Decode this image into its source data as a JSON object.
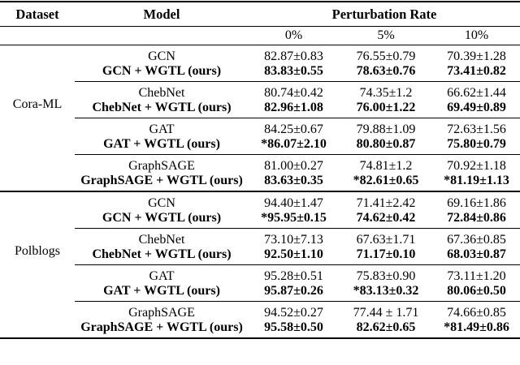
{
  "table": {
    "headers": {
      "dataset": "Dataset",
      "model": "Model",
      "perturbation": "Perturbation Rate",
      "rates": [
        "0%",
        "5%",
        "10%"
      ]
    },
    "sections": [
      {
        "dataset": "Cora-ML",
        "groups": [
          {
            "rows": [
              {
                "model": "GCN",
                "bold": false,
                "values": [
                  "82.87±0.83",
                  "76.55±0.79",
                  "70.39±1.28"
                ]
              },
              {
                "model": "GCN + WGTL (ours)",
                "bold": true,
                "values": [
                  "83.83±0.55",
                  "78.63±0.76",
                  "73.41±0.82"
                ]
              }
            ]
          },
          {
            "rows": [
              {
                "model": "ChebNet",
                "bold": false,
                "values": [
                  "80.74±0.42",
                  "74.35±1.2",
                  "66.62±1.44"
                ]
              },
              {
                "model": "ChebNet + WGTL (ours)",
                "bold": true,
                "values": [
                  "82.96±1.08",
                  "76.00±1.22",
                  "69.49±0.89"
                ]
              }
            ]
          },
          {
            "rows": [
              {
                "model": "GAT",
                "bold": false,
                "values": [
                  "84.25±0.67",
                  "79.88±1.09",
                  "72.63±1.56"
                ]
              },
              {
                "model": "GAT + WGTL (ours)",
                "bold": true,
                "values": [
                  "*86.07±2.10",
                  "80.80±0.87",
                  "75.80±0.79"
                ]
              }
            ]
          },
          {
            "rows": [
              {
                "model": "GraphSAGE",
                "bold": false,
                "values": [
                  "81.00±0.27",
                  "74.81±1.2",
                  "70.92±1.18"
                ]
              },
              {
                "model": "GraphSAGE + WGTL (ours)",
                "bold": true,
                "values": [
                  "83.63±0.35",
                  "*82.61±0.65",
                  "*81.19±1.13"
                ]
              }
            ]
          }
        ]
      },
      {
        "dataset": "Polblogs",
        "groups": [
          {
            "rows": [
              {
                "model": "GCN",
                "bold": false,
                "values": [
                  "94.40±1.47",
                  "71.41±2.42",
                  "69.16±1.86"
                ]
              },
              {
                "model": "GCN + WGTL (ours)",
                "bold": true,
                "values": [
                  "*95.95±0.15",
                  "74.62±0.42",
                  "72.84±0.86"
                ]
              }
            ]
          },
          {
            "rows": [
              {
                "model": "ChebNet",
                "bold": false,
                "values": [
                  "73.10±7.13",
                  "67.63±1.71",
                  "67.36±0.85"
                ]
              },
              {
                "model": "ChebNet + WGTL (ours)",
                "bold": true,
                "values": [
                  "92.50±1.10",
                  "71.17±0.10",
                  "68.03±0.87"
                ]
              }
            ]
          },
          {
            "rows": [
              {
                "model": "GAT",
                "bold": false,
                "values": [
                  "95.28±0.51",
                  "75.83±0.90",
                  "73.11±1.20"
                ]
              },
              {
                "model": "GAT + WGTL (ours)",
                "bold": true,
                "values": [
                  "95.87±0.26",
                  "*83.13±0.32",
                  "80.06±0.50"
                ]
              }
            ]
          },
          {
            "rows": [
              {
                "model": "GraphSAGE",
                "bold": false,
                "values": [
                  "94.52±0.27",
                  "77.44 ± 1.71",
                  "74.66±0.85"
                ]
              },
              {
                "model": "GraphSAGE + WGTL (ours)",
                "bold": true,
                "values": [
                  "95.58±0.50",
                  "82.62±0.65",
                  "*81.49±0.86"
                ]
              }
            ]
          }
        ]
      }
    ]
  }
}
